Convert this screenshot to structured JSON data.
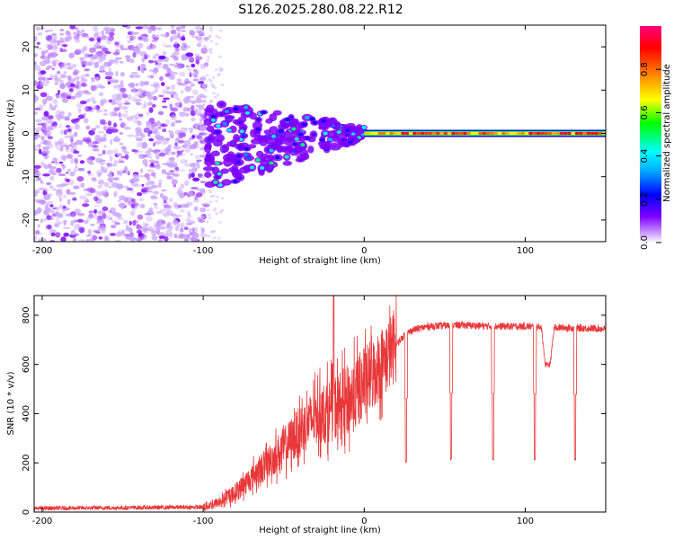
{
  "figure": {
    "title": "S126.2025.280.08.22.R12"
  },
  "chart_data": [
    {
      "type": "heatmap",
      "panel": "spectrogram",
      "xlabel": "Height of straight line (km)",
      "ylabel": "Frequency (Hz)",
      "xlim": [
        -205,
        150
      ],
      "ylim": [
        -25,
        25
      ],
      "xticks": [
        -200,
        -100,
        0,
        100
      ],
      "xtick_labels": [
        "-200",
        "-100",
        "0",
        "100"
      ],
      "yticks": [
        -20,
        -10,
        0,
        10,
        20
      ],
      "ytick_labels": [
        "-20",
        "-10",
        "0",
        "10",
        "20"
      ],
      "colorbar": {
        "label": "Normalized spectral amplitude",
        "range": [
          0,
          1
        ],
        "ticks": [
          0.0,
          0.2,
          0.4,
          0.6,
          0.8
        ],
        "tick_labels": [
          "0.0",
          "0.2",
          "0.4",
          "0.6",
          "0.8"
        ],
        "colormap": [
          "#ffffff",
          "#7f00ff",
          "#0000ff",
          "#00ffff",
          "#00ff00",
          "#ffff00",
          "#ff8000",
          "#ff0000",
          "#ff0080"
        ]
      },
      "regions": [
        {
          "name": "noise",
          "x_range": [
            -205,
            -98
          ],
          "freq_range": [
            -25,
            25
          ],
          "amplitude": [
            0.0,
            0.15
          ]
        },
        {
          "name": "transition",
          "x_range": [
            -98,
            0
          ],
          "freq_range": [
            -16,
            5
          ],
          "amplitude": [
            0.1,
            0.45
          ]
        },
        {
          "name": "carrier",
          "x_range": [
            0,
            150
          ],
          "freq": 0,
          "amplitude": [
            0.6,
            0.95
          ]
        }
      ]
    },
    {
      "type": "line",
      "panel": "snr",
      "xlabel": "Height of straight line (km)",
      "ylabel": "SNR (10 * v/v)",
      "xlim": [
        -205,
        150
      ],
      "ylim": [
        0,
        880
      ],
      "xticks": [
        -200,
        -100,
        0,
        100
      ],
      "xtick_labels": [
        "-200",
        "-100",
        "0",
        "100"
      ],
      "yticks": [
        0,
        200,
        400,
        600,
        800
      ],
      "ytick_labels": [
        "0",
        "200",
        "400",
        "600",
        "800"
      ],
      "color": "#e8383a",
      "profile_x": [
        -205,
        -100,
        -90,
        -80,
        -70,
        -60,
        -50,
        -40,
        -30,
        -20,
        -10,
        0,
        10,
        20,
        25,
        30,
        40,
        60,
        80,
        100,
        120,
        150
      ],
      "profile_y": [
        15,
        20,
        40,
        80,
        140,
        200,
        260,
        330,
        390,
        420,
        450,
        520,
        600,
        680,
        720,
        740,
        755,
        760,
        755,
        755,
        750,
        745
      ],
      "dips": [
        {
          "x": 26,
          "min": 200
        },
        {
          "x": 54,
          "min": 210
        },
        {
          "x": 80,
          "min": 210
        },
        {
          "x": 106,
          "min": 210
        },
        {
          "x": 131,
          "min": 210
        }
      ],
      "spike": {
        "x": -19,
        "max": 880
      },
      "depression": {
        "x_range": [
          110,
          118
        ],
        "level": 600
      }
    }
  ]
}
